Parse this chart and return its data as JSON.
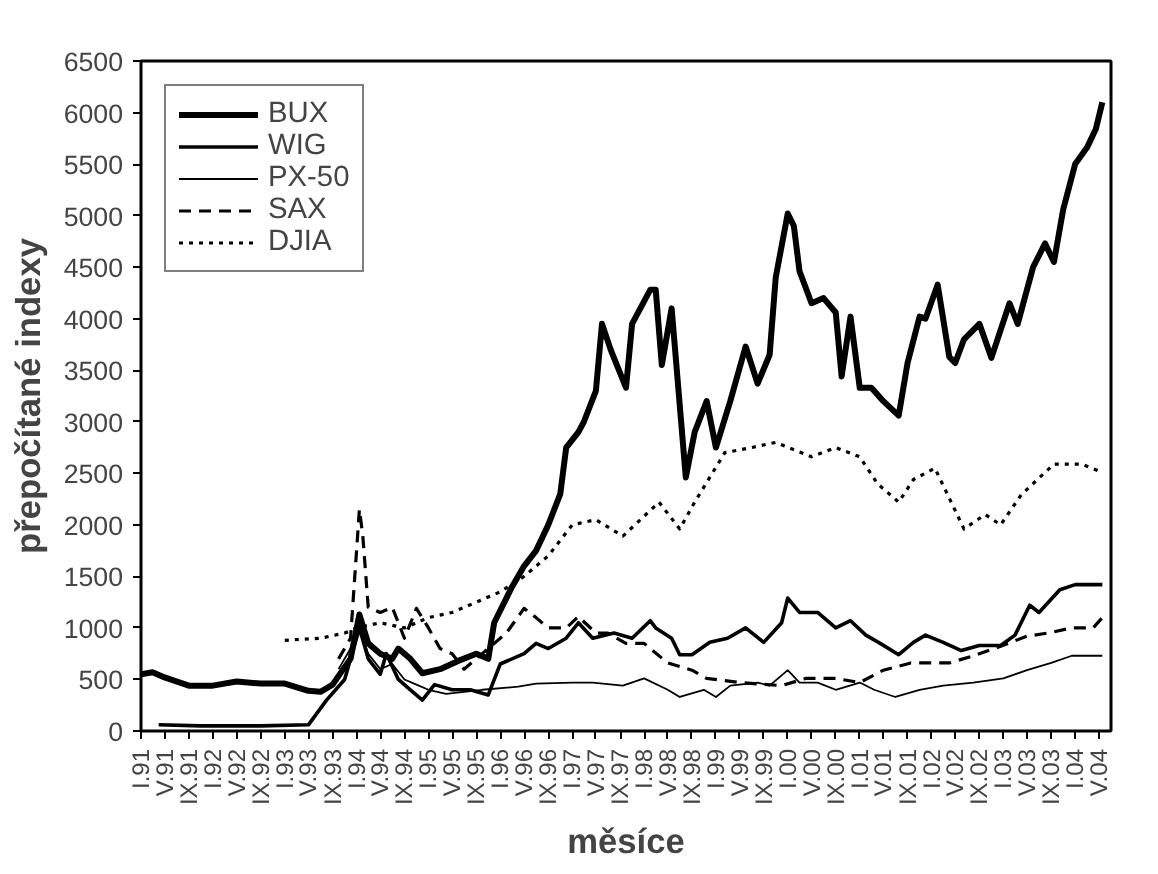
{
  "chart_data": {
    "type": "line",
    "ylabel": "přepočítané indexy",
    "xlabel": "měsíce",
    "legend": "top left",
    "grid": false,
    "xlim": [
      "1991-01",
      "2004-07"
    ],
    "ylim": [
      0,
      6500
    ],
    "yticks": [
      0,
      500,
      1000,
      1500,
      2000,
      2500,
      3000,
      3500,
      4000,
      4500,
      5000,
      5500,
      6000,
      6500
    ],
    "xticks": [
      {
        "value": "1991-01",
        "label": "I.91"
      },
      {
        "value": "1991-05",
        "label": "V.91"
      },
      {
        "value": "1991-09",
        "label": "IX.91"
      },
      {
        "value": "1992-01",
        "label": "I.92"
      },
      {
        "value": "1992-05",
        "label": "V.92"
      },
      {
        "value": "1992-09",
        "label": "IX.92"
      },
      {
        "value": "1993-01",
        "label": "I.93"
      },
      {
        "value": "1993-05",
        "label": "V.93"
      },
      {
        "value": "1993-09",
        "label": "IX.93"
      },
      {
        "value": "1994-01",
        "label": "I.94"
      },
      {
        "value": "1994-05",
        "label": "V.94"
      },
      {
        "value": "1994-09",
        "label": "IX.94"
      },
      {
        "value": "1995-01",
        "label": "I.95"
      },
      {
        "value": "1995-05",
        "label": "V.95"
      },
      {
        "value": "1995-09",
        "label": "IX.95"
      },
      {
        "value": "1996-01",
        "label": "I.96"
      },
      {
        "value": "1996-05",
        "label": "V.96"
      },
      {
        "value": "1996-09",
        "label": "IX.96"
      },
      {
        "value": "1997-01",
        "label": "I.97"
      },
      {
        "value": "1997-05",
        "label": "V.97"
      },
      {
        "value": "1997-09",
        "label": "IX.97"
      },
      {
        "value": "1998-01",
        "label": "I.98"
      },
      {
        "value": "1998-05",
        "label": "V.98"
      },
      {
        "value": "1998-09",
        "label": "IX.98"
      },
      {
        "value": "1999-01",
        "label": "I.99"
      },
      {
        "value": "1999-05",
        "label": "V.99"
      },
      {
        "value": "1999-09",
        "label": "IX.99"
      },
      {
        "value": "2000-01",
        "label": "I.00"
      },
      {
        "value": "2000-05",
        "label": "V.00"
      },
      {
        "value": "2000-09",
        "label": "IX.00"
      },
      {
        "value": "2001-01",
        "label": "I.01"
      },
      {
        "value": "2001-05",
        "label": "V.01"
      },
      {
        "value": "2001-09",
        "label": "IX.01"
      },
      {
        "value": "2002-01",
        "label": "I.02"
      },
      {
        "value": "2002-05",
        "label": "V.02"
      },
      {
        "value": "2002-09",
        "label": "IX.02"
      },
      {
        "value": "2003-01",
        "label": "I.03"
      },
      {
        "value": "2003-05",
        "label": "V.03"
      },
      {
        "value": "2003-09",
        "label": "IX.03"
      },
      {
        "value": "2004-01",
        "label": "I.04"
      },
      {
        "value": "2004-05",
        "label": "V.04"
      }
    ],
    "series": [
      {
        "name": "BUX",
        "color": "#000000",
        "line_style": "solid",
        "x": [
          "1991-01",
          "1991-03",
          "1991-05",
          "1991-09",
          "1992-01",
          "1992-05",
          "1992-09",
          "1993-01",
          "1993-05",
          "1993-07",
          "1993-09",
          "1993-11",
          "1993-12",
          "1994-01-15",
          "1994-03",
          "1994-05",
          "1994-07",
          "1994-08",
          "1994-10",
          "1994-12",
          "1995-03",
          "1995-06",
          "1995-09",
          "1995-11",
          "1995-12",
          "1996-03",
          "1996-05",
          "1996-07",
          "1996-09",
          "1996-11",
          "1996-12",
          "1997-02",
          "1997-03",
          "1997-05",
          "1997-06",
          "1997-07-15",
          "1997-10",
          "1997-11",
          "1998-02",
          "1998-03",
          "1998-04",
          "1998-05-21",
          "1998-08",
          "1998-09-15",
          "1998-11-15",
          "1999-01",
          "1999-03-15",
          "1999-06",
          "1999-08",
          "1999-10",
          "1999-11",
          "2000-01",
          "2000-02",
          "2000-03",
          "2000-05",
          "2000-07",
          "2000-09",
          "2000-10",
          "2000-11-15",
          "2001-01",
          "2001-03",
          "2001-05",
          "2001-07-18",
          "2001-09",
          "2001-11",
          "2001-12",
          "2002-02",
          "2002-04",
          "2002-05",
          "2002-06-15",
          "2002-09",
          "2002-11",
          "2003-02",
          "2003-03-15",
          "2003-06",
          "2003-08",
          "2003-09-15",
          "2003-11",
          "2004-01",
          "2004-03",
          "2004-04-15",
          "2004-05-18"
        ],
        "values": [
          550,
          570,
          520,
          440,
          440,
          480,
          460,
          460,
          390,
          380,
          450,
          620,
          700,
          1130,
          850,
          750,
          700,
          800,
          700,
          560,
          600,
          680,
          750,
          700,
          1050,
          1400,
          1600,
          1750,
          2000,
          2300,
          2750,
          2900,
          3000,
          3300,
          3950,
          3700,
          3330,
          3950,
          4280,
          4280,
          3550,
          4100,
          2460,
          2900,
          3200,
          2750,
          3200,
          3730,
          3370,
          3650,
          4400,
          5020,
          4900,
          4460,
          4150,
          4200,
          4060,
          3440,
          4020,
          3330,
          3330,
          3200,
          3060,
          3570,
          4020,
          4000,
          4330,
          3630,
          3570,
          3800,
          3950,
          3620,
          4150,
          3950,
          4500,
          4730,
          4550,
          5060,
          5500,
          5660,
          5840,
          6100
        ]
      },
      {
        "name": "WIG",
        "color": "#000000",
        "line_style": "solid",
        "x": [
          "1991-04",
          "1991-11",
          "1992-09",
          "1993-05",
          "1993-08",
          "1993-11",
          "1994-01-15",
          "1994-03",
          "1994-05",
          "1994-06",
          "1994-08",
          "1994-10",
          "1994-12",
          "1995-02",
          "1995-05",
          "1995-08",
          "1995-11",
          "1996-01",
          "1996-05",
          "1996-07",
          "1996-09",
          "1996-12",
          "1997-02",
          "1997-04-15",
          "1997-08",
          "1997-11",
          "1998-02",
          "1998-03",
          "1998-05-21",
          "1998-07",
          "1998-09",
          "1998-12",
          "1999-03",
          "1999-06",
          "1999-09",
          "1999-12",
          "2000-01",
          "2000-03",
          "2000-06",
          "2000-09",
          "2000-11-15",
          "2001-02",
          "2001-04-15",
          "2001-07-18",
          "2001-10",
          "2001-12",
          "2002-03",
          "2002-06",
          "2002-09",
          "2002-12-18",
          "2003-03",
          "2003-05-15",
          "2003-07",
          "2003-10-15",
          "2004-01",
          "2004-05-18"
        ],
        "values": [
          60,
          50,
          50,
          60,
          300,
          500,
          1000,
          700,
          550,
          750,
          500,
          400,
          300,
          450,
          400,
          400,
          350,
          650,
          750,
          850,
          800,
          900,
          1050,
          900,
          950,
          900,
          1070,
          1000,
          900,
          740,
          740,
          860,
          900,
          1000,
          860,
          1050,
          1290,
          1150,
          1150,
          1000,
          1070,
          930,
          850,
          740,
          860,
          930,
          860,
          780,
          830,
          830,
          930,
          1220,
          1150,
          1370,
          1420,
          1420
        ]
      },
      {
        "name": "PX-50",
        "color": "#000000",
        "line_style": "solid",
        "x": [
          "1993-10",
          "1993-12",
          "1994-01-15",
          "1994-03",
          "1994-05",
          "1994-07",
          "1994-09",
          "1994-11",
          "1995-01",
          "1995-04",
          "1995-10",
          "1996-04",
          "1996-07",
          "1997-01",
          "1997-04-15",
          "1997-09-15",
          "1998-01",
          "1998-05",
          "1998-07",
          "1998-11",
          "1999-01",
          "1999-03-15",
          "1999-08",
          "1999-10",
          "2000-01",
          "2000-03",
          "2000-06",
          "2000-09",
          "2001-01",
          "2001-03-15",
          "2001-07",
          "2001-11",
          "2002-03",
          "2002-08",
          "2003-01",
          "2003-05",
          "2003-09",
          "2003-12-15",
          "2004-05-18"
        ],
        "values": [
          600,
          800,
          1000,
          750,
          600,
          650,
          500,
          450,
          400,
          360,
          400,
          430,
          460,
          470,
          470,
          440,
          510,
          400,
          330,
          400,
          330,
          440,
          470,
          440,
          590,
          470,
          470,
          400,
          470,
          400,
          330,
          400,
          440,
          470,
          510,
          590,
          660,
          730,
          730
        ]
      },
      {
        "name": "SAX",
        "color": "#000000",
        "line_style": "dashed",
        "x": [
          "1993-10",
          "1993-12",
          "1994-01-15",
          "1994-02",
          "1994-03",
          "1994-05",
          "1994-07",
          "1994-09",
          "1994-11",
          "1995-01",
          "1995-03",
          "1995-05",
          "1995-07",
          "1995-09",
          "1995-11",
          "1996-02",
          "1996-05",
          "1996-07",
          "1996-09",
          "1996-12",
          "1997-02",
          "1997-05",
          "1997-07",
          "1997-10",
          "1998-01",
          "1998-05",
          "1998-09",
          "1998-11-15",
          "1999-05",
          "1999-12",
          "2000-04",
          "2000-09",
          "2001-01",
          "2001-05",
          "2001-09-18",
          "2001-12",
          "2002-04",
          "2002-08",
          "2002-12",
          "2003-05",
          "2003-08-15",
          "2003-12-15",
          "2004-04",
          "2004-05-18"
        ],
        "values": [
          700,
          900,
          2150,
          1900,
          1200,
          1150,
          1200,
          900,
          1190,
          1000,
          800,
          750,
          600,
          700,
          800,
          950,
          1190,
          1100,
          1000,
          1000,
          1110,
          950,
          950,
          850,
          850,
          660,
          590,
          510,
          470,
          440,
          510,
          510,
          470,
          590,
          660,
          660,
          660,
          730,
          810,
          920,
          950,
          1000,
          1000,
          1100
        ]
      },
      {
        "name": "DJIA",
        "color": "#000000",
        "line_style": "dotted",
        "x": [
          "1993-01",
          "1993-07",
          "1993-11",
          "1994-01",
          "1994-05",
          "1994-09",
          "1995-01",
          "1995-05",
          "1995-09",
          "1996-01",
          "1996-05",
          "1996-09",
          "1997-01",
          "1997-05",
          "1997-09-15",
          "1998-03-18",
          "1998-07",
          "1998-09-15",
          "1999-02-15",
          "1999-07",
          "1999-11",
          "2000-05",
          "2000-09",
          "2001-01",
          "2001-04",
          "2001-07-18",
          "2001-10",
          "2002-01-18",
          "2002-06-15",
          "2002-10",
          "2002-12-18",
          "2003-04",
          "2003-09-15",
          "2004-02",
          "2004-05-18"
        ],
        "values": [
          880,
          900,
          950,
          1000,
          1050,
          1000,
          1100,
          1150,
          1250,
          1350,
          1500,
          1700,
          2000,
          2050,
          1890,
          2220,
          1960,
          2220,
          2700,
          2750,
          2800,
          2660,
          2750,
          2660,
          2400,
          2220,
          2440,
          2550,
          1960,
          2100,
          2000,
          2290,
          2590,
          2590,
          2510
        ]
      }
    ]
  }
}
